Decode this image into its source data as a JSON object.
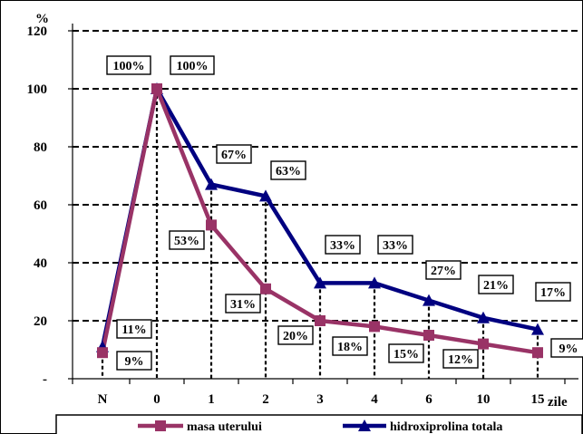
{
  "chart_data": {
    "type": "line",
    "categories": [
      "N",
      "0",
      "1",
      "2",
      "3",
      "4",
      "6",
      "10",
      "15"
    ],
    "xlabel": "zile",
    "ylabel": "%",
    "ylim": [
      0,
      120
    ],
    "yticks": [
      0,
      20,
      40,
      60,
      80,
      100,
      120
    ],
    "ytick_labels": [
      "-",
      "20",
      "40",
      "60",
      "80",
      "100",
      "120"
    ],
    "grid": true,
    "legend_position": "bottom",
    "series": [
      {
        "name": "masa uterului",
        "color": "#993366",
        "marker": "square",
        "values": [
          9,
          100,
          53,
          31,
          20,
          18,
          15,
          12,
          9
        ],
        "labels": [
          "9%",
          "100%",
          "53%",
          "31%",
          "20%",
          "18%",
          "15%",
          "12%",
          "9%"
        ]
      },
      {
        "name": "hidroxiprolina totala",
        "color": "#000080",
        "marker": "triangle",
        "values": [
          11,
          100,
          67,
          63,
          33,
          33,
          27,
          21,
          17
        ],
        "labels": [
          "11%",
          "100%",
          "67%",
          "63%",
          "33%",
          "33%",
          "27%",
          "21%",
          "17%"
        ]
      }
    ]
  }
}
